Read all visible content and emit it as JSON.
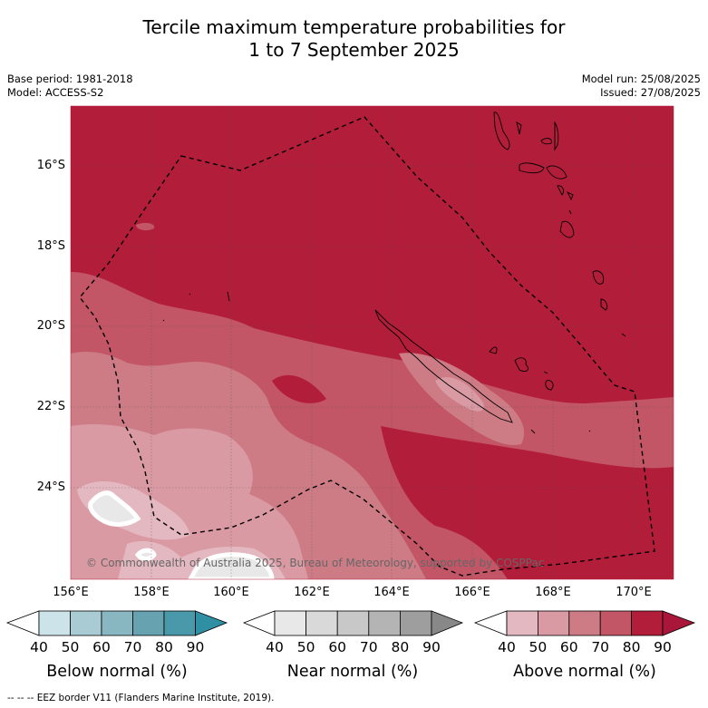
{
  "title_line1": "Tercile maximum temperature probabilities for",
  "title_line2": "1 to 7 September 2025",
  "meta_left": [
    "Base period: 1981-2018",
    "Model: ACCESS-S2"
  ],
  "meta_right": [
    "Model run: 25/08/2025",
    "Issued: 27/08/2025"
  ],
  "lat_labels": [
    "16°S",
    "18°S",
    "20°S",
    "22°S",
    "24°S"
  ],
  "lon_labels": [
    "156°E",
    "158°E",
    "160°E",
    "162°E",
    "164°E",
    "166°E",
    "168°E",
    "170°E"
  ],
  "copyright": "© Commonwealth of Australia 2025, Bureau of Meteorology, supported by COSPPac",
  "colorbars": [
    {
      "title": "Below normal (%)",
      "ticks": [
        "40",
        "50",
        "60",
        "70",
        "80",
        "90"
      ],
      "colors": [
        "#ffffff",
        "#cde3ea",
        "#a9cbd3",
        "#88b6c1",
        "#66a2b0",
        "#4a99aa",
        "#2f8fa3"
      ]
    },
    {
      "title": "Near normal (%)",
      "ticks": [
        "40",
        "50",
        "60",
        "70",
        "80",
        "90"
      ],
      "colors": [
        "#ffffff",
        "#e8e8e8",
        "#d9d9d9",
        "#c8c8c8",
        "#b4b4b4",
        "#9e9e9e",
        "#888888"
      ]
    },
    {
      "title": "Above normal (%)",
      "ticks": [
        "40",
        "50",
        "60",
        "70",
        "80",
        "90"
      ],
      "colors": [
        "#ffffff",
        "#e3b8c0",
        "#d99aa3",
        "#cd7c86",
        "#c25666",
        "#b21d3a",
        "#a8173a"
      ]
    }
  ],
  "footer": "-- -- -- EEZ border V11 (Flanders Marine Institute, 2019)."
}
